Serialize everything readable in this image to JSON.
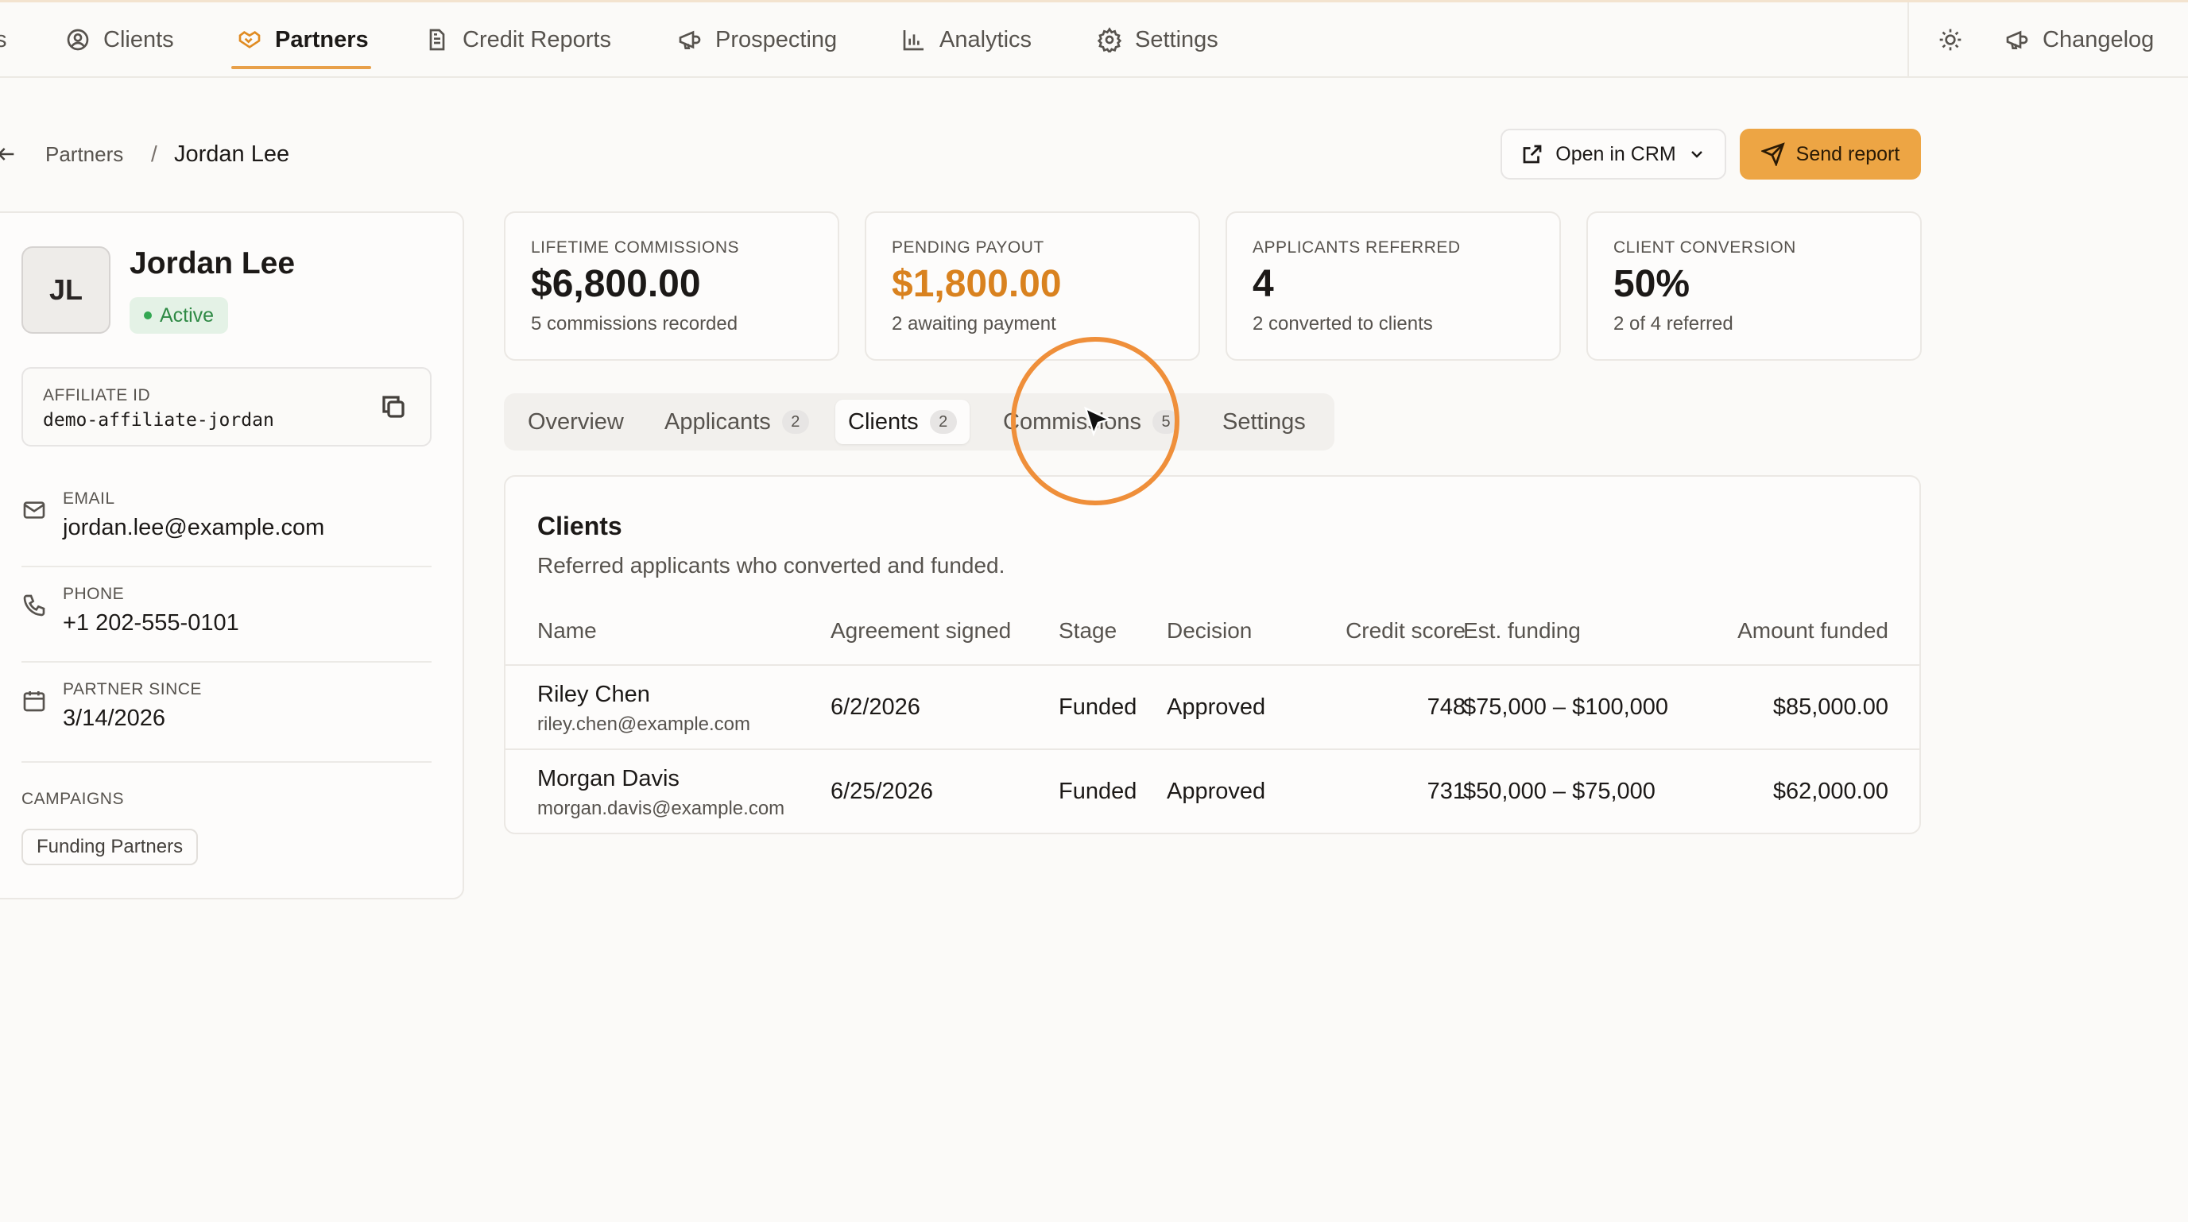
{
  "nav": {
    "left_stub": "s",
    "items": [
      {
        "label": "Clients",
        "icon": "user-circle-icon"
      },
      {
        "label": "Partners",
        "icon": "handshake-icon",
        "active": true
      },
      {
        "label": "Credit Reports",
        "icon": "document-icon"
      },
      {
        "label": "Prospecting",
        "icon": "megaphone-icon"
      },
      {
        "label": "Analytics",
        "icon": "bar-chart-icon"
      },
      {
        "label": "Settings",
        "icon": "gear-icon"
      }
    ],
    "theme_icon": "sun-icon",
    "changelog": "Changelog"
  },
  "breadcrumb": {
    "parent": "Partners",
    "separator": "/",
    "current": "Jordan Lee"
  },
  "actions": {
    "open_crm": "Open in CRM",
    "send_report": "Send report"
  },
  "profile": {
    "initials": "JL",
    "name": "Jordan Lee",
    "status": "Active",
    "affiliate_label": "AFFILIATE ID",
    "affiliate_id": "demo-affiliate-jordan",
    "email_label": "EMAIL",
    "email": "jordan.lee@example.com",
    "phone_label": "PHONE",
    "phone": "+1 202-555-0101",
    "since_label": "PARTNER SINCE",
    "since": "3/14/2026",
    "campaigns_label": "CAMPAIGNS",
    "campaign": "Funding Partners"
  },
  "stats": [
    {
      "label": "LIFETIME COMMISSIONS",
      "value": "$6,800.00",
      "sub": "5 commissions recorded"
    },
    {
      "label": "PENDING PAYOUT",
      "value": "$1,800.00",
      "sub": "2 awaiting payment"
    },
    {
      "label": "APPLICANTS REFERRED",
      "value": "4",
      "sub": "2 converted to clients"
    },
    {
      "label": "CLIENT CONVERSION",
      "value": "50%",
      "sub": "2 of 4 referred"
    }
  ],
  "colors": {
    "accent": "#eda544",
    "pending_value": "#d9821f"
  },
  "tabs": [
    {
      "label": "Overview"
    },
    {
      "label": "Applicants",
      "count": "2"
    },
    {
      "label": "Clients",
      "count": "2",
      "active": true
    },
    {
      "label": "Commissions",
      "count": "5"
    },
    {
      "label": "Settings"
    }
  ],
  "clients": {
    "title": "Clients",
    "description": "Referred applicants who converted and funded.",
    "columns": [
      "Name",
      "Agreement signed",
      "Stage",
      "Decision",
      "Credit score",
      "Est. funding",
      "Amount funded"
    ],
    "rows": [
      {
        "name": "Riley Chen",
        "email": "riley.chen@example.com",
        "signed": "6/2/2026",
        "stage": "Funded",
        "decision": "Approved",
        "score": "748",
        "est": "$75,000 – $100,000",
        "amount": "$85,000.00"
      },
      {
        "name": "Morgan Davis",
        "email": "morgan.davis@example.com",
        "signed": "6/25/2026",
        "stage": "Funded",
        "decision": "Approved",
        "score": "731",
        "est": "$50,000 – $75,000",
        "amount": "$62,000.00"
      }
    ]
  }
}
